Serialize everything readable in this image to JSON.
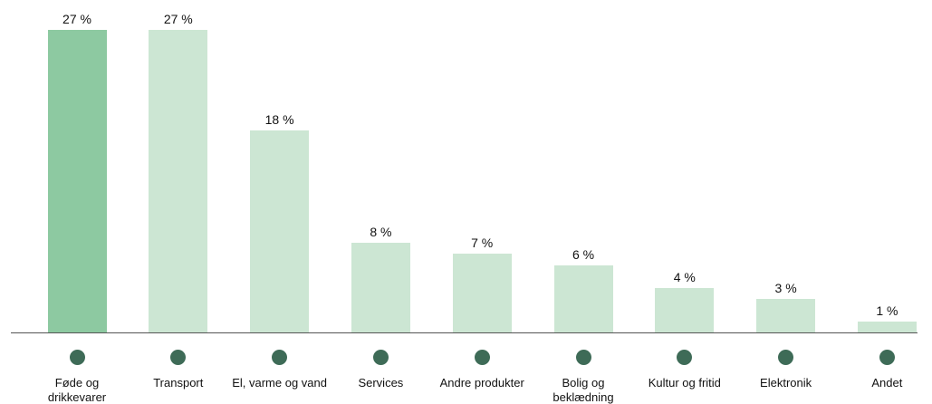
{
  "chart_data": {
    "type": "bar",
    "categories": [
      "Føde og drikkevarer",
      "Transport",
      "El, varme og vand",
      "Services",
      "Andre produkter",
      "Bolig og beklædning",
      "Kultur og fritid",
      "Elektronik",
      "Andet"
    ],
    "values": [
      27,
      27,
      18,
      8,
      7,
      6,
      4,
      3,
      1
    ],
    "value_labels": [
      "27 %",
      "27 %",
      "18 %",
      "8 %",
      "7 %",
      "6 %",
      "4 %",
      "3 %",
      "1 %"
    ],
    "colors": [
      "#8dc9a1",
      "#cce6d3",
      "#cce6d3",
      "#cce6d3",
      "#cce6d3",
      "#cce6d3",
      "#cce6d3",
      "#cce6d3",
      "#cce6d3"
    ]
  }
}
